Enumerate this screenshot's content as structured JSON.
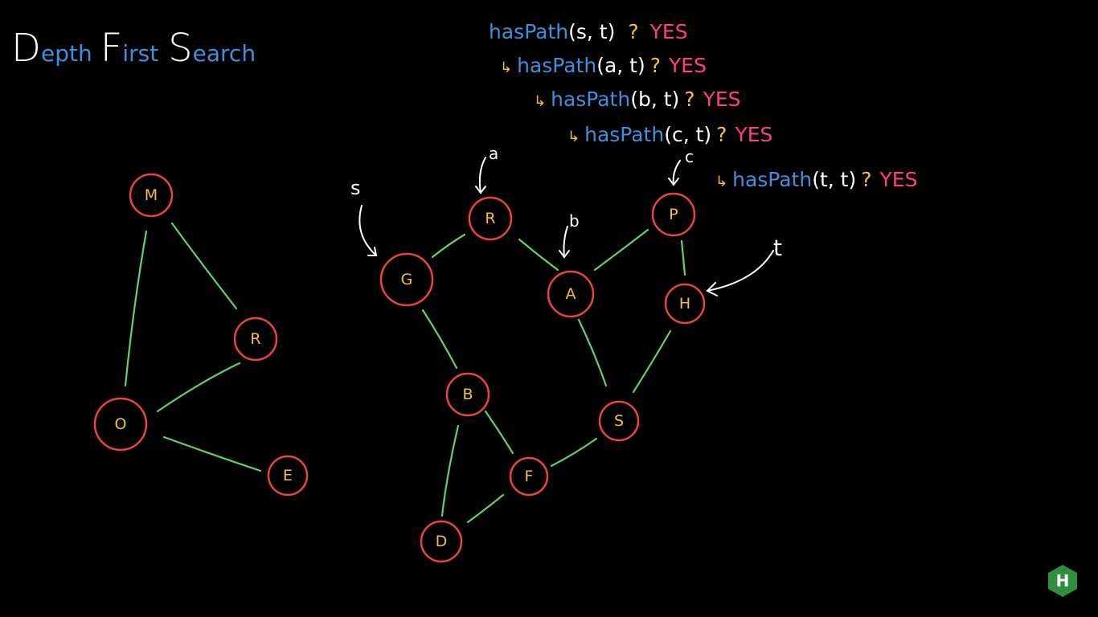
{
  "title": {
    "letters": [
      {
        "big": "D",
        "rest": "epth"
      },
      {
        "big": "F",
        "rest": "irst"
      },
      {
        "big": "S",
        "rest": "earch"
      }
    ]
  },
  "graph_left": {
    "nodes": [
      "M",
      "R",
      "O",
      "E"
    ]
  },
  "graph_right": {
    "nodes": [
      "R",
      "G",
      "A",
      "P",
      "H",
      "B",
      "S",
      "F",
      "D"
    ]
  },
  "annotations": {
    "s_label": "s",
    "a_label": "a",
    "b_label": "b",
    "c_label": "c",
    "t_label": "t"
  },
  "calls": [
    {
      "arrow": "",
      "fn": "hasPath",
      "args": "(s, t)",
      "q": "?",
      "ans": "YES"
    },
    {
      "arrow": "↳",
      "fn": "hasPath",
      "args": "(a, t)",
      "q": "?",
      "ans": "YES"
    },
    {
      "arrow": "↳",
      "fn": "hasPath",
      "args": "(b, t)",
      "q": "?",
      "ans": "YES"
    },
    {
      "arrow": "↳",
      "fn": "hasPath",
      "args": "(c, t)",
      "q": "?",
      "ans": "YES"
    },
    {
      "arrow": "↳",
      "fn": "hasPath",
      "args": "(t, t)",
      "q": "?",
      "ans": "YES"
    }
  ],
  "logo": {
    "text": "H"
  },
  "colors": {
    "node_stroke": "#e8453c",
    "node_text": "#f2c230",
    "edge": "#5dd36a",
    "fn_text": "#3d8fe0",
    "answer": "#ff3d8b"
  }
}
